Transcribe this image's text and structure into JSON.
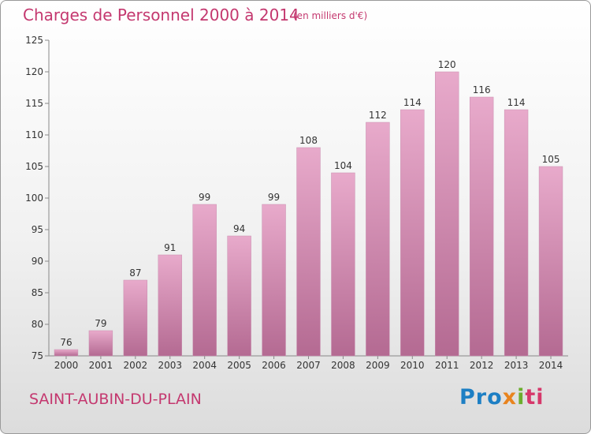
{
  "header": {
    "title": "Charges de Personnel 2000 à 2014",
    "subtitle": "(en milliers d'€)"
  },
  "footer": {
    "commune": "SAINT-AUBIN-DU-PLAIN",
    "logo": {
      "p1": "Pro",
      "p2": "x",
      "p3": "i",
      "p4": "ti"
    }
  },
  "colors": {
    "bar_top": "#e8aacb",
    "bar_bottom": "#b46a92",
    "title": "#c4386f"
  },
  "chart_data": {
    "type": "bar",
    "title": "Charges de Personnel 2000 à 2014",
    "subtitle": "(en milliers d'€)",
    "categories": [
      "2000",
      "2001",
      "2002",
      "2003",
      "2004",
      "2005",
      "2006",
      "2007",
      "2008",
      "2009",
      "2010",
      "2011",
      "2012",
      "2013",
      "2014"
    ],
    "values": [
      76,
      79,
      87,
      91,
      99,
      94,
      99,
      108,
      104,
      112,
      114,
      120,
      116,
      114,
      105
    ],
    "ylim": [
      75,
      125
    ],
    "yticks": [
      75,
      80,
      85,
      90,
      95,
      100,
      105,
      110,
      115,
      120,
      125
    ],
    "grid": false,
    "data_labels": true
  }
}
